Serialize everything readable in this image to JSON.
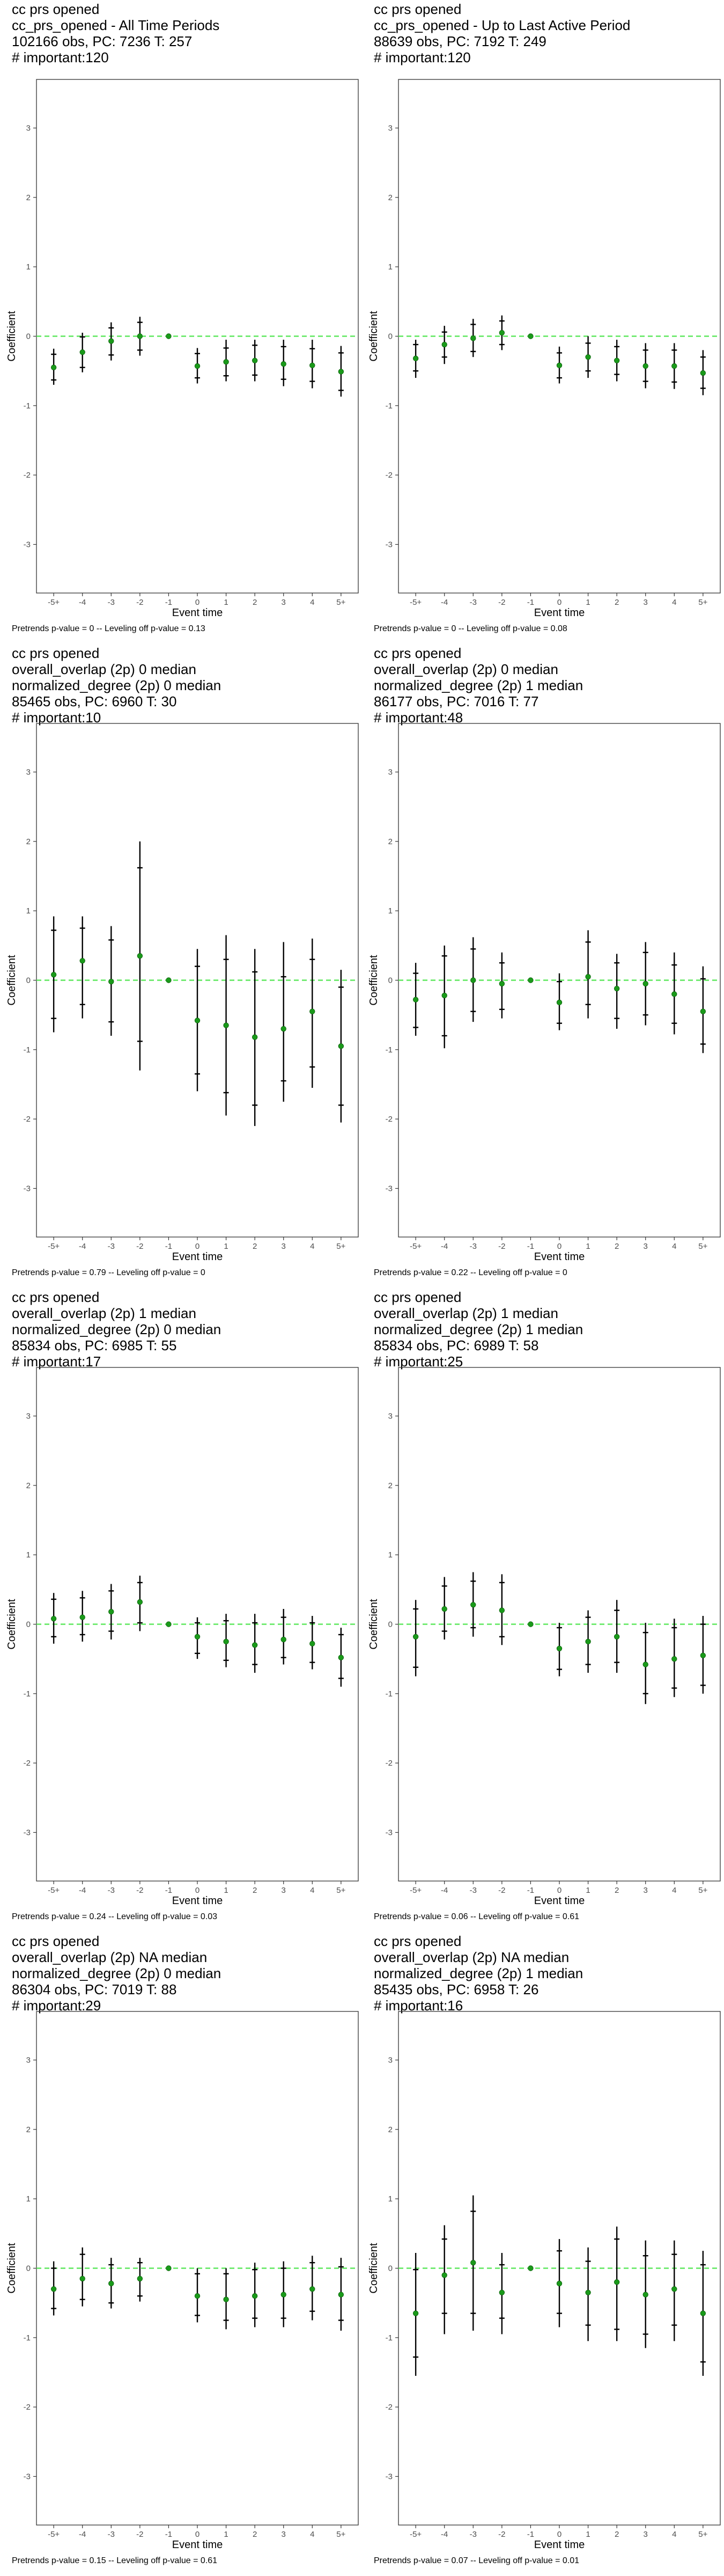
{
  "colors": {
    "estimate": "#1a9a1a",
    "zero_line": "#5ee85e",
    "interval": "#000000",
    "axis": "#333333",
    "tick_text": "#4d4d4d"
  },
  "chart_data": [
    {
      "type": "scatter",
      "title": [
        "cc prs opened",
        "cc_prs_opened - All Time Periods",
        "102166 obs, PC: 7236 T: 257",
        "# important:120"
      ],
      "xlabel": "Event time",
      "ylabel": "Coefficient",
      "categories": [
        "-5+",
        "-4",
        "-3",
        "-2",
        "-1",
        "0",
        "1",
        "2",
        "3",
        "4",
        "5+"
      ],
      "ylim": [
        -3.7,
        3.7
      ],
      "yticks": [
        -3,
        -2,
        -1,
        0,
        1,
        2,
        3
      ],
      "series": [
        {
          "estimate": [
            -0.45,
            -0.23,
            -0.07,
            0.0,
            0.0,
            -0.43,
            -0.37,
            -0.35,
            -0.4,
            -0.42,
            -0.51
          ],
          "ci_outer_low": [
            -0.7,
            -0.52,
            -0.35,
            -0.28,
            0,
            -0.68,
            -0.65,
            -0.65,
            -0.72,
            -0.75,
            -0.87
          ],
          "ci_outer_high": [
            -0.18,
            0.05,
            0.2,
            0.28,
            0,
            -0.17,
            -0.05,
            -0.05,
            -0.05,
            -0.05,
            -0.14
          ],
          "ci_inner_low": [
            -0.63,
            -0.45,
            -0.27,
            -0.2,
            0,
            -0.6,
            -0.57,
            -0.56,
            -0.62,
            -0.65,
            -0.78
          ],
          "ci_inner_high": [
            -0.26,
            -0.01,
            0.12,
            0.2,
            0,
            -0.25,
            -0.17,
            -0.13,
            -0.15,
            -0.18,
            -0.24
          ]
        }
      ],
      "caption": "Pretrends p-value = 0 -- Leveling off p-value = 0.13"
    },
    {
      "type": "scatter",
      "title": [
        "cc prs opened",
        "cc_prs_opened - Up to Last Active Period",
        "88639 obs, PC: 7192 T: 249",
        "# important:120"
      ],
      "xlabel": "Event time",
      "ylabel": "Coefficient",
      "categories": [
        "-5+",
        "-4",
        "-3",
        "-2",
        "-1",
        "0",
        "1",
        "2",
        "3",
        "4",
        "5+"
      ],
      "ylim": [
        -3.7,
        3.7
      ],
      "yticks": [
        -3,
        -2,
        -1,
        0,
        1,
        2,
        3
      ],
      "series": [
        {
          "estimate": [
            -0.32,
            -0.12,
            -0.03,
            0.05,
            0.0,
            -0.42,
            -0.3,
            -0.35,
            -0.43,
            -0.43,
            -0.53
          ],
          "ci_outer_low": [
            -0.6,
            -0.4,
            -0.3,
            -0.2,
            0,
            -0.68,
            -0.6,
            -0.65,
            -0.75,
            -0.76,
            -0.85
          ],
          "ci_outer_high": [
            -0.05,
            0.15,
            0.25,
            0.3,
            0,
            -0.15,
            0.0,
            -0.05,
            -0.1,
            -0.1,
            -0.2
          ],
          "ci_inner_low": [
            -0.5,
            -0.3,
            -0.22,
            -0.12,
            0,
            -0.6,
            -0.5,
            -0.55,
            -0.65,
            -0.66,
            -0.75
          ],
          "ci_inner_high": [
            -0.12,
            0.06,
            0.17,
            0.22,
            0,
            -0.24,
            -0.1,
            -0.15,
            -0.2,
            -0.2,
            -0.3
          ]
        }
      ],
      "caption": "Pretrends p-value = 0 -- Leveling off p-value = 0.08"
    },
    {
      "type": "scatter",
      "title": [
        "cc prs opened",
        "overall_overlap (2p) 0 median",
        "normalized_degree (2p) 0 median",
        "85465 obs, PC: 6960 T: 30",
        "# important:10"
      ],
      "xlabel": "Event time",
      "ylabel": "Coefficient",
      "categories": [
        "-5+",
        "-4",
        "-3",
        "-2",
        "-1",
        "0",
        "1",
        "2",
        "3",
        "4",
        "5+"
      ],
      "ylim": [
        -3.7,
        3.7
      ],
      "yticks": [
        -3,
        -2,
        -1,
        0,
        1,
        2,
        3
      ],
      "series": [
        {
          "estimate": [
            0.08,
            0.28,
            -0.02,
            0.35,
            0.0,
            -0.58,
            -0.65,
            -0.82,
            -0.7,
            -0.45,
            -0.95
          ],
          "ci_outer_low": [
            -0.75,
            -0.55,
            -0.8,
            -1.3,
            0,
            -1.6,
            -1.95,
            -2.1,
            -1.75,
            -1.55,
            -2.05
          ],
          "ci_outer_high": [
            0.92,
            0.92,
            0.78,
            2.0,
            0,
            0.45,
            0.65,
            0.45,
            0.55,
            0.6,
            0.15
          ],
          "ci_inner_low": [
            -0.55,
            -0.35,
            -0.6,
            -0.88,
            0,
            -1.35,
            -1.62,
            -1.8,
            -1.45,
            -1.25,
            -1.8
          ],
          "ci_inner_high": [
            0.72,
            0.75,
            0.58,
            1.62,
            0,
            0.2,
            0.3,
            0.12,
            0.05,
            0.3,
            -0.1
          ]
        }
      ],
      "caption": "Pretrends p-value = 0.79 -- Leveling off p-value = 0"
    },
    {
      "type": "scatter",
      "title": [
        "cc prs opened",
        "overall_overlap (2p) 0 median",
        "normalized_degree (2p) 1 median",
        "86177 obs, PC: 7016 T: 77",
        "# important:48"
      ],
      "xlabel": "Event time",
      "ylabel": "Coefficient",
      "categories": [
        "-5+",
        "-4",
        "-3",
        "-2",
        "-1",
        "0",
        "1",
        "2",
        "3",
        "4",
        "5+"
      ],
      "ylim": [
        -3.7,
        3.7
      ],
      "yticks": [
        -3,
        -2,
        -1,
        0,
        1,
        2,
        3
      ],
      "series": [
        {
          "estimate": [
            -0.28,
            -0.22,
            0.0,
            -0.05,
            0.0,
            -0.32,
            0.05,
            -0.12,
            -0.05,
            -0.2,
            -0.45
          ],
          "ci_outer_low": [
            -0.8,
            -0.98,
            -0.6,
            -0.55,
            0,
            -0.72,
            -0.55,
            -0.7,
            -0.65,
            -0.78,
            -1.05
          ],
          "ci_outer_high": [
            0.25,
            0.5,
            0.62,
            0.4,
            0,
            0.1,
            0.72,
            0.38,
            0.55,
            0.4,
            0.2
          ],
          "ci_inner_low": [
            -0.68,
            -0.8,
            -0.45,
            -0.42,
            0,
            -0.62,
            -0.35,
            -0.55,
            -0.5,
            -0.62,
            -0.92
          ],
          "ci_inner_high": [
            0.1,
            0.35,
            0.45,
            0.25,
            0,
            -0.02,
            0.55,
            0.25,
            0.4,
            0.22,
            0.02
          ]
        }
      ],
      "caption": "Pretrends p-value = 0.22 -- Leveling off p-value = 0"
    },
    {
      "type": "scatter",
      "title": [
        "cc prs opened",
        "overall_overlap (2p) 1 median",
        "normalized_degree (2p) 0 median",
        "85834 obs, PC: 6985 T: 55",
        "# important:17"
      ],
      "xlabel": "Event time",
      "ylabel": "Coefficient",
      "categories": [
        "-5+",
        "-4",
        "-3",
        "-2",
        "-1",
        "0",
        "1",
        "2",
        "3",
        "4",
        "5+"
      ],
      "ylim": [
        -3.7,
        3.7
      ],
      "yticks": [
        -3,
        -2,
        -1,
        0,
        1,
        2,
        3
      ],
      "series": [
        {
          "estimate": [
            0.08,
            0.1,
            0.18,
            0.32,
            0.0,
            -0.18,
            -0.25,
            -0.3,
            -0.22,
            -0.28,
            -0.48
          ],
          "ci_outer_low": [
            -0.28,
            -0.25,
            -0.22,
            -0.1,
            0,
            -0.5,
            -0.62,
            -0.7,
            -0.58,
            -0.65,
            -0.9
          ],
          "ci_outer_high": [
            0.45,
            0.48,
            0.58,
            0.7,
            0,
            0.1,
            0.15,
            0.15,
            0.22,
            0.12,
            -0.05
          ],
          "ci_inner_low": [
            -0.18,
            -0.15,
            -0.1,
            0.02,
            0,
            -0.42,
            -0.52,
            -0.58,
            -0.48,
            -0.55,
            -0.78
          ],
          "ci_inner_high": [
            0.36,
            0.38,
            0.48,
            0.6,
            0,
            0.02,
            0.05,
            0.02,
            0.1,
            0.02,
            -0.15
          ]
        }
      ],
      "caption": "Pretrends p-value = 0.24 -- Leveling off p-value = 0.03"
    },
    {
      "type": "scatter",
      "title": [
        "cc prs opened",
        "overall_overlap (2p) 1 median",
        "normalized_degree (2p) 1 median",
        "85834 obs, PC: 6989 T: 58",
        "# important:25"
      ],
      "xlabel": "Event time",
      "ylabel": "Coefficient",
      "categories": [
        "-5+",
        "-4",
        "-3",
        "-2",
        "-1",
        "0",
        "1",
        "2",
        "3",
        "4",
        "5+"
      ],
      "ylim": [
        -3.7,
        3.7
      ],
      "yticks": [
        -3,
        -2,
        -1,
        0,
        1,
        2,
        3
      ],
      "series": [
        {
          "estimate": [
            -0.18,
            0.22,
            0.28,
            0.2,
            0.0,
            -0.35,
            -0.25,
            -0.18,
            -0.58,
            -0.5,
            -0.45
          ],
          "ci_outer_low": [
            -0.75,
            -0.22,
            -0.18,
            -0.3,
            0,
            -0.75,
            -0.7,
            -0.7,
            -1.15,
            -1.05,
            -1.0
          ],
          "ci_outer_high": [
            0.35,
            0.68,
            0.75,
            0.72,
            0,
            0.02,
            0.2,
            0.35,
            0.02,
            0.08,
            0.12
          ],
          "ci_inner_low": [
            -0.62,
            -0.1,
            -0.05,
            -0.18,
            0,
            -0.65,
            -0.58,
            -0.55,
            -1.0,
            -0.92,
            -0.88
          ],
          "ci_inner_high": [
            0.22,
            0.55,
            0.62,
            0.6,
            0,
            -0.05,
            0.1,
            0.2,
            -0.12,
            -0.05,
            0.0
          ]
        }
      ],
      "caption": "Pretrends p-value = 0.06 -- Leveling off p-value = 0.61"
    },
    {
      "type": "scatter",
      "title": [
        "cc prs opened",
        "overall_overlap (2p) NA median",
        "normalized_degree (2p) 0 median",
        "86304 obs, PC: 7019 T: 88",
        "# important:29"
      ],
      "xlabel": "Event time",
      "ylabel": "Coefficient",
      "categories": [
        "-5+",
        "-4",
        "-3",
        "-2",
        "-1",
        "0",
        "1",
        "2",
        "3",
        "4",
        "5+"
      ],
      "ylim": [
        -3.7,
        3.7
      ],
      "yticks": [
        -3,
        -2,
        -1,
        0,
        1,
        2,
        3
      ],
      "series": [
        {
          "estimate": [
            -0.3,
            -0.15,
            -0.22,
            -0.15,
            0.0,
            -0.4,
            -0.45,
            -0.4,
            -0.38,
            -0.3,
            -0.38
          ],
          "ci_outer_low": [
            -0.68,
            -0.55,
            -0.58,
            -0.48,
            0,
            -0.78,
            -0.88,
            -0.85,
            -0.85,
            -0.75,
            -0.9
          ],
          "ci_outer_high": [
            0.1,
            0.3,
            0.15,
            0.15,
            0,
            0.0,
            0.0,
            0.08,
            0.1,
            0.18,
            0.15
          ],
          "ci_inner_low": [
            -0.58,
            -0.45,
            -0.5,
            -0.4,
            0,
            -0.68,
            -0.75,
            -0.72,
            -0.72,
            -0.62,
            -0.75
          ],
          "ci_inner_high": [
            0.0,
            0.2,
            0.05,
            0.08,
            0,
            -0.08,
            -0.08,
            -0.02,
            0.0,
            0.08,
            0.02
          ]
        }
      ],
      "caption": "Pretrends p-value = 0.15 -- Leveling off p-value = 0.61"
    },
    {
      "type": "scatter",
      "title": [
        "cc prs opened",
        "overall_overlap (2p) NA median",
        "normalized_degree (2p) 1 median",
        "85435 obs, PC: 6958 T: 26",
        "# important:16"
      ],
      "xlabel": "Event time",
      "ylabel": "Coefficient",
      "categories": [
        "-5+",
        "-4",
        "-3",
        "-2",
        "-1",
        "0",
        "1",
        "2",
        "3",
        "4",
        "5+"
      ],
      "ylim": [
        -3.7,
        3.7
      ],
      "yticks": [
        -3,
        -2,
        -1,
        0,
        1,
        2,
        3
      ],
      "series": [
        {
          "estimate": [
            -0.65,
            -0.1,
            0.08,
            -0.35,
            0.0,
            -0.22,
            -0.35,
            -0.2,
            -0.38,
            -0.3,
            -0.65
          ],
          "ci_outer_low": [
            -1.55,
            -0.95,
            -0.9,
            -0.95,
            0,
            -0.85,
            -1.05,
            -1.05,
            -1.15,
            -1.05,
            -1.55
          ],
          "ci_outer_high": [
            0.22,
            0.62,
            1.05,
            0.22,
            0,
            0.42,
            0.3,
            0.6,
            0.4,
            0.4,
            0.25
          ],
          "ci_inner_low": [
            -1.28,
            -0.65,
            -0.65,
            -0.72,
            0,
            -0.65,
            -0.82,
            -0.88,
            -0.95,
            -0.82,
            -1.35
          ],
          "ci_inner_high": [
            -0.02,
            0.42,
            0.82,
            0.05,
            0,
            0.25,
            0.1,
            0.42,
            0.18,
            0.2,
            0.05
          ]
        }
      ],
      "caption": "Pretrends p-value = 0.07 -- Leveling off p-value = 0.01"
    }
  ]
}
